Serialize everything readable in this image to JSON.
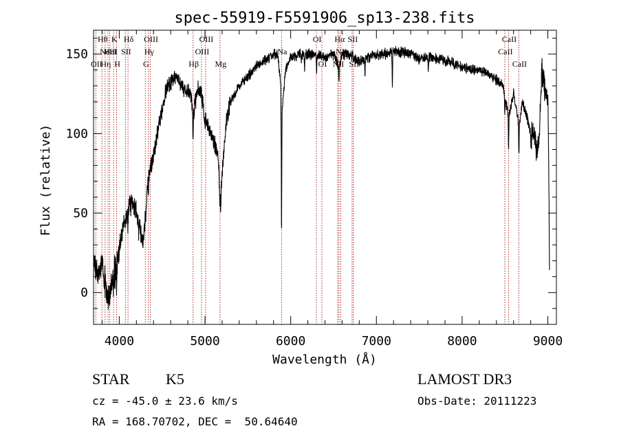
{
  "chart_data": {
    "type": "line",
    "title": "spec-55919-F5591906_sp13-238.fits",
    "xlabel": "Wavelength (Å)",
    "ylabel": "Flux (relative)",
    "xlim": [
      3700,
      9100
    ],
    "ylim": [
      -20,
      165
    ],
    "grid": false,
    "x_ticks": [
      4000,
      5000,
      6000,
      7000,
      8000,
      9000
    ],
    "x_tick_labels": [
      "4000",
      "5000",
      "6000",
      "7000",
      "8000",
      "9000"
    ],
    "y_ticks": [
      0,
      50,
      100,
      150
    ],
    "y_tick_labels": [
      "0",
      "50",
      "100",
      "150"
    ],
    "series": [
      {
        "name": "spectrum",
        "anchors": [
          [
            3700,
            15
          ],
          [
            3760,
            10
          ],
          [
            3800,
            18
          ],
          [
            3850,
            2
          ],
          [
            3880,
            -5
          ],
          [
            3920,
            8
          ],
          [
            3960,
            15
          ],
          [
            4000,
            28
          ],
          [
            4040,
            40
          ],
          [
            4080,
            48
          ],
          [
            4120,
            55
          ],
          [
            4160,
            56
          ],
          [
            4200,
            50
          ],
          [
            4250,
            38
          ],
          [
            4280,
            33
          ],
          [
            4300,
            42
          ],
          [
            4340,
            75
          ],
          [
            4380,
            80
          ],
          [
            4420,
            92
          ],
          [
            4460,
            105
          ],
          [
            4500,
            115
          ],
          [
            4550,
            128
          ],
          [
            4600,
            132
          ],
          [
            4650,
            135
          ],
          [
            4700,
            132
          ],
          [
            4750,
            128
          ],
          [
            4800,
            126
          ],
          [
            4840,
            124
          ],
          [
            4861,
            110
          ],
          [
            4880,
            118
          ],
          [
            4920,
            128
          ],
          [
            4960,
            124
          ],
          [
            5000,
            108
          ],
          [
            5050,
            102
          ],
          [
            5100,
            95
          ],
          [
            5150,
            88
          ],
          [
            5183,
            62
          ],
          [
            5220,
            90
          ],
          [
            5260,
            112
          ],
          [
            5300,
            120
          ],
          [
            5400,
            130
          ],
          [
            5500,
            136
          ],
          [
            5600,
            142
          ],
          [
            5700,
            146
          ],
          [
            5800,
            150
          ],
          [
            5850,
            150
          ],
          [
            5890,
            128
          ],
          [
            5893,
            45
          ],
          [
            5900,
            115
          ],
          [
            5940,
            140
          ],
          [
            6000,
            148
          ],
          [
            6100,
            150
          ],
          [
            6200,
            150
          ],
          [
            6300,
            149
          ],
          [
            6400,
            148
          ],
          [
            6500,
            150
          ],
          [
            6563,
            142
          ],
          [
            6600,
            150
          ],
          [
            6700,
            149
          ],
          [
            6800,
            146
          ],
          [
            6900,
            148
          ],
          [
            7000,
            150
          ],
          [
            7100,
            150
          ],
          [
            7200,
            152
          ],
          [
            7300,
            151
          ],
          [
            7400,
            150
          ],
          [
            7500,
            147
          ],
          [
            7600,
            148
          ],
          [
            7700,
            147
          ],
          [
            7800,
            146
          ],
          [
            7900,
            144
          ],
          [
            8000,
            142
          ],
          [
            8100,
            140
          ],
          [
            8200,
            140
          ],
          [
            8300,
            138
          ],
          [
            8400,
            134
          ],
          [
            8480,
            130
          ],
          [
            8542,
            110
          ],
          [
            8600,
            126
          ],
          [
            8662,
            105
          ],
          [
            8700,
            120
          ],
          [
            8750,
            112
          ],
          [
            8800,
            100
          ],
          [
            8850,
            98
          ],
          [
            8870,
            88
          ],
          [
            8900,
            100
          ],
          [
            8930,
            140
          ],
          [
            8960,
            130
          ],
          [
            8990,
            122
          ],
          [
            9000,
            120
          ],
          [
            9010,
            80
          ],
          [
            9020,
            8
          ]
        ],
        "absorption_dips": [
          [
            3934,
            -12
          ],
          [
            3969,
            -10
          ],
          [
            4101,
            -8
          ],
          [
            4227,
            -6
          ],
          [
            4340,
            -10
          ],
          [
            4861,
            -14
          ],
          [
            5167,
            -8
          ],
          [
            5173,
            -14
          ],
          [
            5183,
            -10
          ],
          [
            5270,
            -6
          ],
          [
            5890,
            -40
          ],
          [
            6122,
            -6
          ],
          [
            6162,
            -8
          ],
          [
            6302,
            -12
          ],
          [
            6563,
            -10
          ],
          [
            6867,
            -10
          ],
          [
            7186,
            -22
          ],
          [
            7605,
            -8
          ],
          [
            8498,
            -12
          ],
          [
            8542,
            -18
          ],
          [
            8662,
            -20
          ],
          [
            8806,
            -10
          ]
        ]
      }
    ],
    "line_marks": [
      {
        "wavelength": 3727,
        "label": "OII",
        "row": 2
      },
      {
        "wavelength": 3798,
        "label": "Hθ",
        "row": 0
      },
      {
        "wavelength": 3835,
        "label": "Hη",
        "row": 2
      },
      {
        "wavelength": 3869,
        "label": "NeIII",
        "row": 1
      },
      {
        "wavelength": 3889,
        "label": "HeI",
        "row": 1
      },
      {
        "wavelength": 3934,
        "label": "K",
        "row": 0
      },
      {
        "wavelength": 3969,
        "label": "H",
        "row": 2
      },
      {
        "wavelength": 4072,
        "label": "SII",
        "row": 1
      },
      {
        "wavelength": 4102,
        "label": "Hδ",
        "row": 0
      },
      {
        "wavelength": 4304,
        "label": "G",
        "row": 2
      },
      {
        "wavelength": 4341,
        "label": "Hγ",
        "row": 1
      },
      {
        "wavelength": 4363,
        "label": "OIII",
        "row": 0
      },
      {
        "wavelength": 4861,
        "label": "Hβ",
        "row": 2
      },
      {
        "wavelength": 4959,
        "label": "OIII",
        "row": 1
      },
      {
        "wavelength": 5007,
        "label": "OIII",
        "row": 0
      },
      {
        "wavelength": 5175,
        "label": "Mg",
        "row": 2
      },
      {
        "wavelength": 5894,
        "label": "Na",
        "row": 1
      },
      {
        "wavelength": 6300,
        "label": "OI",
        "row": 0
      },
      {
        "wavelength": 6364,
        "label": "OI",
        "row": 2
      },
      {
        "wavelength": 6548,
        "label": "NII",
        "row": 2
      },
      {
        "wavelength": 6563,
        "label": "Hα",
        "row": 0
      },
      {
        "wavelength": 6584,
        "label": "NII",
        "row": 1
      },
      {
        "wavelength": 6716,
        "label": "SII",
        "row": 0
      },
      {
        "wavelength": 6731,
        "label": "SII",
        "row": 2
      },
      {
        "wavelength": 8498,
        "label": "CaII",
        "row": 1
      },
      {
        "wavelength": 8542,
        "label": "CaII",
        "row": 0
      },
      {
        "wavelength": 8662,
        "label": "CaII",
        "row": 2
      }
    ]
  },
  "info": {
    "class_label": "STAR",
    "subclass_label": "K5",
    "survey": "LAMOST DR3",
    "redshift_text": "cz = -45.0 ± 23.6 km/s",
    "obs_date_text": "Obs-Date: 20111223",
    "coords_text": "RA = 168.70702, DEC =  50.64640"
  },
  "colors": {
    "line_marker": "#b22222",
    "spectrum": "#000000",
    "axis": "#000000"
  }
}
